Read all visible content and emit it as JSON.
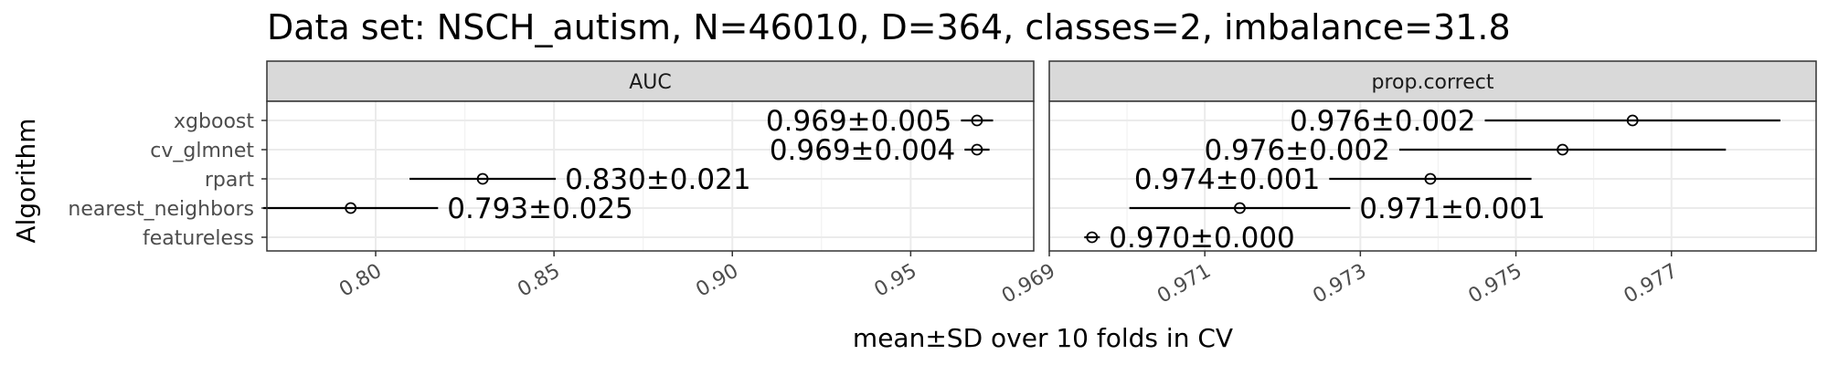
{
  "chart_data": {
    "type": "scatter",
    "title": "Data set: NSCH_autism, N=46010, D=364, classes=2, imbalance=31.8",
    "xlabel": "mean±SD over 10 folds in CV",
    "ylabel": "Algorithm",
    "categories": [
      "xgboost",
      "cv_glmnet",
      "rpart",
      "nearest_neighbors",
      "featureless"
    ],
    "grid": true,
    "panels": [
      {
        "name": "AUC",
        "xlim": [
          0.7695,
          0.9845
        ],
        "ticks": [
          "0.80",
          "0.85",
          "0.90",
          "0.95"
        ],
        "tick_values": [
          0.8,
          0.85,
          0.9,
          0.95
        ],
        "points": [
          {
            "algorithm": "xgboost",
            "mean": 0.9686,
            "sd": 0.0045,
            "label": "0.969±0.005",
            "label_side": "left"
          },
          {
            "algorithm": "cv_glmnet",
            "mean": 0.9686,
            "sd": 0.0035,
            "label": "0.969±0.004",
            "label_side": "left"
          },
          {
            "algorithm": "rpart",
            "mean": 0.83,
            "sd": 0.0205,
            "label": "0.830±0.021",
            "label_side": "right"
          },
          {
            "algorithm": "nearest_neighbors",
            "mean": 0.793,
            "sd": 0.0245,
            "label": "0.793±0.025",
            "label_side": "right"
          },
          {
            "algorithm": "featureless",
            "mean": null,
            "sd": null,
            "label": "",
            "label_side": "right"
          }
        ]
      },
      {
        "name": "prop.correct",
        "xlim": [
          0.969,
          0.97886
        ],
        "ticks": [
          "0.969",
          "0.971",
          "0.973",
          "0.975",
          "0.977"
        ],
        "tick_values": [
          0.969,
          0.971,
          0.973,
          0.975,
          0.977
        ],
        "points": [
          {
            "algorithm": "xgboost",
            "mean": 0.9765,
            "sd": 0.0019,
            "label": "0.976±0.002",
            "label_side": "left"
          },
          {
            "algorithm": "cv_glmnet",
            "mean": 0.9756,
            "sd": 0.0021,
            "label": "0.976±0.002",
            "label_side": "left"
          },
          {
            "algorithm": "rpart",
            "mean": 0.9739,
            "sd": 0.0013,
            "label": "0.974±0.001",
            "label_side": "left"
          },
          {
            "algorithm": "nearest_neighbors",
            "mean": 0.97145,
            "sd": 0.00142,
            "label": "0.971±0.001",
            "label_side": "right"
          },
          {
            "algorithm": "featureless",
            "mean": 0.96955,
            "sd": 0.0001,
            "label": "0.970±0.000",
            "label_side": "right"
          }
        ]
      }
    ]
  }
}
